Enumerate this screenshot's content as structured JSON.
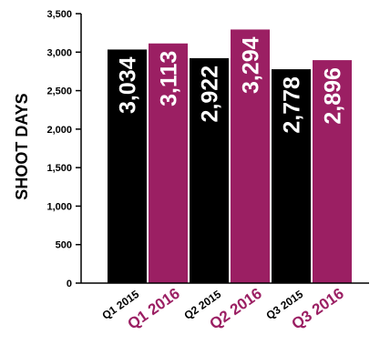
{
  "chart_data": {
    "type": "bar",
    "ylabel": "SHOOT DAYS",
    "xlabel": "",
    "ylim": [
      0,
      3500
    ],
    "yticks": [
      0,
      500,
      1000,
      1500,
      2000,
      2500,
      3000,
      3500
    ],
    "ytick_labels": [
      "0",
      "500",
      "1,000",
      "1,500",
      "2,000",
      "2,500",
      "3,000",
      "3,500"
    ],
    "categories": [
      "Q1 2015",
      "Q1 2016",
      "Q2 2015",
      "Q2 2016",
      "Q3 2015",
      "Q3 2016"
    ],
    "values": [
      3034,
      3113,
      2922,
      3294,
      2778,
      2896
    ],
    "value_labels": [
      "3,034",
      "3,113",
      "2,922",
      "3,294",
      "2,778",
      "2,896"
    ],
    "bar_colors": [
      "#000000",
      "#9b1f63",
      "#000000",
      "#9b1f63",
      "#000000",
      "#9b1f63"
    ],
    "label_colors": [
      "#000000",
      "#9b1f63",
      "#000000",
      "#9b1f63",
      "#000000",
      "#9b1f63"
    ],
    "emphasized": [
      false,
      true,
      false,
      true,
      false,
      true
    ],
    "grid": false,
    "legend": "none"
  }
}
